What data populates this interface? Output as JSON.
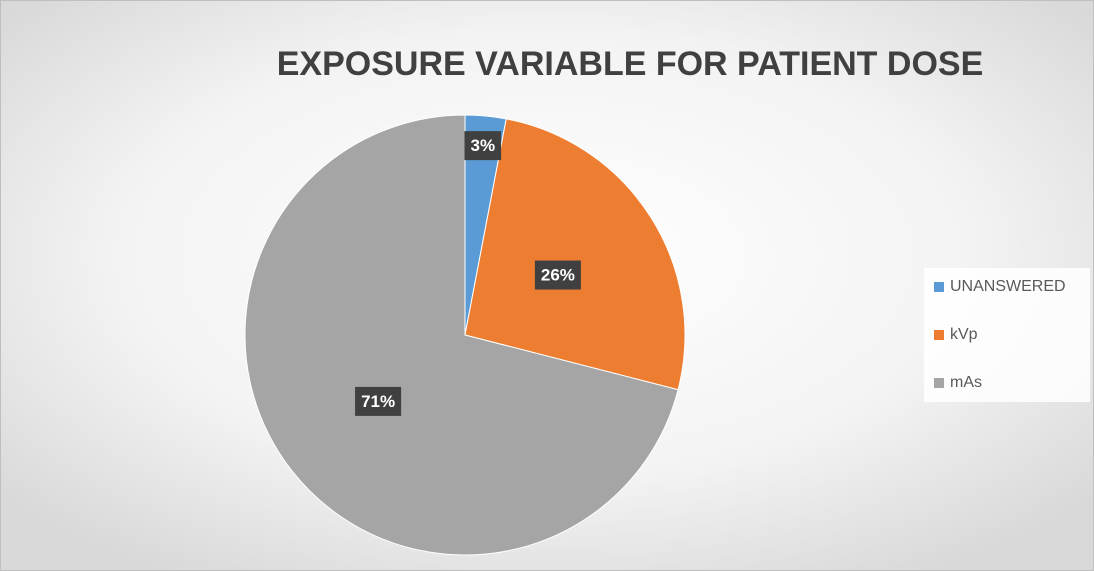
{
  "chart_data": {
    "type": "pie",
    "title": "EXPOSURE VARIABLE FOR PATIENT DOSE",
    "categories": [
      "UNANSWERED",
      "kVp",
      "mAs"
    ],
    "values": [
      3,
      26,
      71
    ],
    "value_labels": [
      "3%",
      "26%",
      "71%"
    ],
    "colors": [
      "#5b9bd5",
      "#ed7d31",
      "#a5a5a5"
    ],
    "legend": "right"
  }
}
